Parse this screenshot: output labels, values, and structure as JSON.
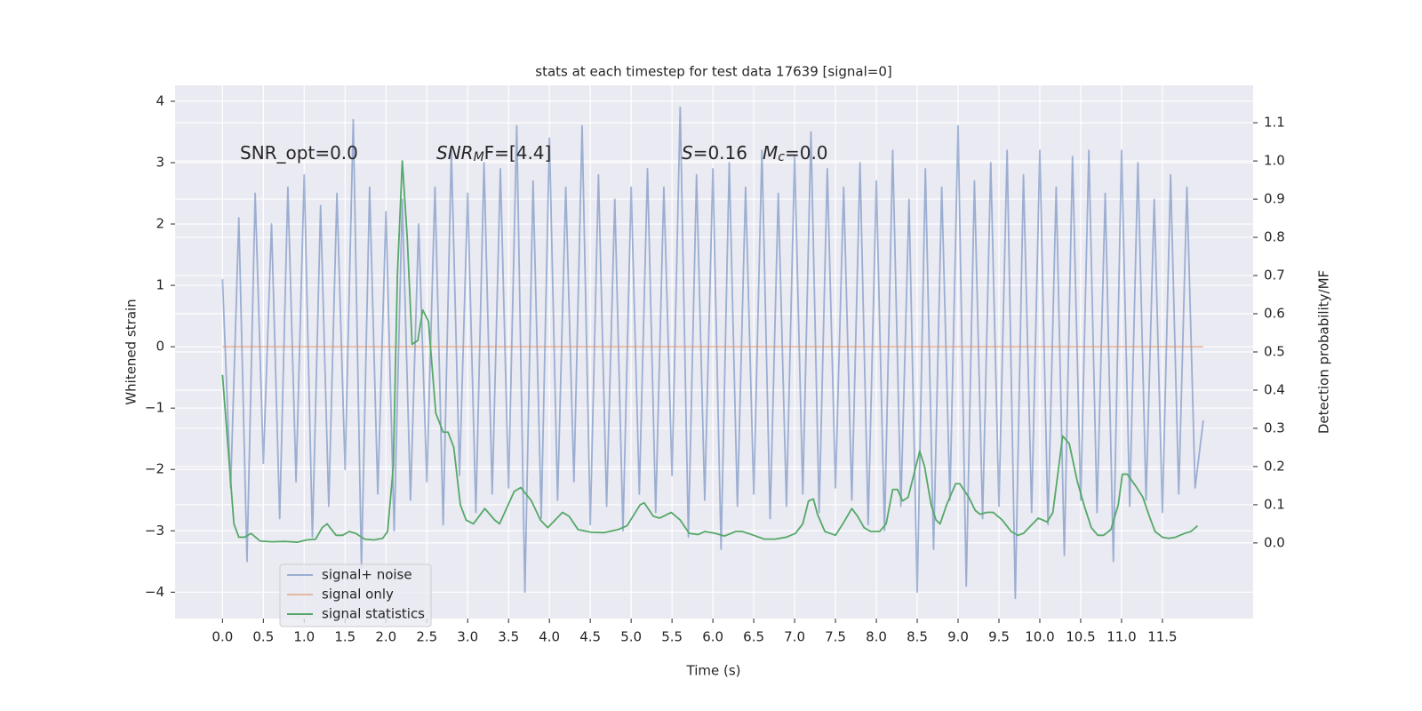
{
  "chart_data": {
    "type": "line",
    "title": "stats at each timestep for test data 17639 [signal=0]",
    "x_label": "Time (s)",
    "y_label": "Whitened strain",
    "y2_label": "Detection probability/MF",
    "background": "#eaeaf2",
    "grid": true,
    "legend": "lower left",
    "xlim": [
      -0.58,
      12.61
    ],
    "ylim": [
      -4.43,
      4.26
    ],
    "y2lim": [
      -0.198,
      1.198
    ],
    "xticks": [
      {
        "value": 0,
        "label": "0.0"
      },
      {
        "value": 0.5,
        "label": "0.5"
      },
      {
        "value": 1,
        "label": "1.0"
      },
      {
        "value": 1.5,
        "label": "1.5"
      },
      {
        "value": 2,
        "label": "2.0"
      },
      {
        "value": 2.5,
        "label": "2.5"
      },
      {
        "value": 3,
        "label": "3.0"
      },
      {
        "value": 3.5,
        "label": "3.5"
      },
      {
        "value": 4,
        "label": "4.0"
      },
      {
        "value": 4.5,
        "label": "4.5"
      },
      {
        "value": 5,
        "label": "5.0"
      },
      {
        "value": 5.5,
        "label": "5.5"
      },
      {
        "value": 6,
        "label": "6.0"
      },
      {
        "value": 6.5,
        "label": "6.5"
      },
      {
        "value": 7,
        "label": "7.0"
      },
      {
        "value": 7.5,
        "label": "7.5"
      },
      {
        "value": 8,
        "label": "8.0"
      },
      {
        "value": 8.5,
        "label": "8.5"
      },
      {
        "value": 9,
        "label": "9.0"
      },
      {
        "value": 9.5,
        "label": "9.5"
      },
      {
        "value": 10,
        "label": "10.0"
      },
      {
        "value": 10.5,
        "label": "10.5"
      },
      {
        "value": 11,
        "label": "11.0"
      },
      {
        "value": 11.5,
        "label": "11.5"
      }
    ],
    "yticks": [
      {
        "value": -4,
        "label": "−4"
      },
      {
        "value": -3,
        "label": "−3"
      },
      {
        "value": -2,
        "label": "−2"
      },
      {
        "value": -1,
        "label": "−1"
      },
      0,
      1,
      2,
      3,
      4
    ],
    "y2ticks": [
      {
        "value": 0,
        "label": "0.0"
      },
      {
        "value": 0.1,
        "label": "0.1"
      },
      {
        "value": 0.2,
        "label": "0.2"
      },
      {
        "value": 0.3,
        "label": "0.3"
      },
      {
        "value": 0.4,
        "label": "0.4"
      },
      {
        "value": 0.5,
        "label": "0.5"
      },
      {
        "value": 0.6,
        "label": "0.6"
      },
      {
        "value": 0.7,
        "label": "0.7"
      },
      {
        "value": 0.8,
        "label": "0.8"
      },
      {
        "value": 0.9,
        "label": "0.9"
      },
      {
        "value": 1,
        "label": "1.0"
      },
      {
        "value": 1.1,
        "label": "1.1"
      }
    ],
    "annotations": [
      {
        "runs": [
          {
            "text": "SNR_opt=0.0",
            "style": "normal"
          }
        ]
      },
      {
        "runs": [
          {
            "text": "SNR",
            "style": "italic"
          },
          {
            "text": "M",
            "style": "italic-sub"
          },
          {
            "text": "F=[4.4]",
            "style": "normal"
          }
        ]
      },
      {
        "runs": [
          {
            "text": "S",
            "style": "italic"
          },
          {
            "text": "=0.16",
            "style": "normal"
          }
        ]
      },
      {
        "runs": [
          {
            "text": "M",
            "style": "italic"
          },
          {
            "text": "c",
            "style": "italic-sub"
          },
          {
            "text": "=0.0",
            "style": "normal"
          }
        ]
      }
    ],
    "series": [
      {
        "name": "signal+ noise",
        "color": "#4c72b0",
        "alpha": 0.5,
        "axis": "y",
        "x": [
          0,
          0.1,
          0.2,
          0.3,
          0.4,
          0.5,
          0.6,
          0.7,
          0.8,
          0.9,
          1,
          1.1,
          1.2,
          1.3,
          1.4,
          1.5,
          1.6,
          1.7,
          1.8,
          1.9,
          2,
          2.1,
          2.2,
          2.3,
          2.4,
          2.5,
          2.6,
          2.7,
          2.8,
          2.9,
          3,
          3.1,
          3.2,
          3.3,
          3.4,
          3.5,
          3.6,
          3.7,
          3.8,
          3.9,
          4,
          4.1,
          4.2,
          4.3,
          4.4,
          4.5,
          4.6,
          4.7,
          4.8,
          4.9,
          5,
          5.1,
          5.2,
          5.3,
          5.4,
          5.5,
          5.6,
          5.7,
          5.8,
          5.9,
          6,
          6.1,
          6.2,
          6.3,
          6.4,
          6.5,
          6.6,
          6.7,
          6.8,
          6.9,
          7,
          7.1,
          7.2,
          7.3,
          7.4,
          7.5,
          7.6,
          7.7,
          7.8,
          7.9,
          8,
          8.1,
          8.2,
          8.3,
          8.4,
          8.5,
          8.6,
          8.7,
          8.8,
          8.9,
          9,
          9.1,
          9.2,
          9.3,
          9.4,
          9.5,
          9.6,
          9.7,
          9.8,
          9.9,
          10,
          10.1,
          10.2,
          10.3,
          10.4,
          10.5,
          10.6,
          10.7,
          10.8,
          10.9,
          11,
          11.1,
          11.2,
          11.3,
          11.4,
          11.5,
          11.6,
          11.7,
          11.8,
          11.9,
          12
        ],
        "values": [
          1.1,
          -2.3,
          2.1,
          -3.5,
          2.5,
          -1.9,
          2.0,
          -2.8,
          2.6,
          -2.2,
          2.8,
          -3.1,
          2.3,
          -2.6,
          2.5,
          -2.0,
          3.7,
          -3.6,
          2.6,
          -2.4,
          2.2,
          -3.0,
          2.4,
          -2.5,
          2.0,
          -2.2,
          2.6,
          -2.9,
          3.2,
          -2.1,
          2.5,
          -2.7,
          3.0,
          -2.4,
          2.9,
          -2.3,
          3.6,
          -4.0,
          2.7,
          -2.8,
          3.4,
          -2.5,
          2.6,
          -2.2,
          3.6,
          -2.9,
          2.8,
          -2.6,
          2.4,
          -3.0,
          2.6,
          -2.4,
          2.9,
          -2.7,
          2.6,
          -2.1,
          3.9,
          -3.1,
          2.8,
          -2.5,
          2.9,
          -3.3,
          3.0,
          -2.6,
          2.6,
          -2.4,
          3.2,
          -2.8,
          2.5,
          -2.6,
          3.1,
          -2.4,
          3.5,
          -2.7,
          2.9,
          -2.3,
          2.6,
          -2.5,
          3.0,
          -2.9,
          2.7,
          -3.0,
          3.2,
          -2.6,
          2.4,
          -4.0,
          2.9,
          -3.3,
          2.6,
          -2.5,
          3.6,
          -3.9,
          2.7,
          -2.8,
          3.0,
          -2.6,
          3.2,
          -4.1,
          2.8,
          -2.7,
          3.2,
          -2.9,
          2.6,
          -3.4,
          3.1,
          -2.5,
          3.2,
          -2.7,
          2.5,
          -3.5,
          3.2,
          -2.6,
          3.0,
          -2.5,
          2.4,
          -2.7,
          2.8,
          -2.4,
          2.6,
          -2.3,
          -1.2
        ]
      },
      {
        "name": "signal only",
        "color": "#dd8452",
        "alpha": 0.5,
        "axis": "y",
        "x": [
          0,
          12
        ],
        "values": [
          0,
          0
        ]
      },
      {
        "name": "signal statistics",
        "color": "#55a868",
        "alpha": 1,
        "axis": "y2",
        "x": [
          0,
          0.14,
          0.2,
          0.27,
          0.35,
          0.46,
          0.6,
          0.76,
          0.92,
          1.03,
          1.14,
          1.22,
          1.28,
          1.39,
          1.47,
          1.55,
          1.63,
          1.74,
          1.85,
          1.96,
          2.02,
          2.09,
          2.14,
          2.2,
          2.26,
          2.32,
          2.39,
          2.45,
          2.52,
          2.61,
          2.7,
          2.76,
          2.83,
          2.91,
          2.98,
          3.07,
          3.21,
          3.33,
          3.39,
          3.57,
          3.65,
          3.78,
          3.89,
          3.98,
          4.16,
          4.24,
          4.35,
          4.51,
          4.67,
          4.84,
          4.95,
          5.11,
          5.16,
          5.27,
          5.35,
          5.49,
          5.6,
          5.71,
          5.82,
          5.9,
          6.03,
          6.14,
          6.28,
          6.36,
          6.5,
          6.63,
          6.76,
          6.9,
          7.01,
          7.1,
          7.17,
          7.23,
          7.28,
          7.37,
          7.5,
          7.59,
          7.7,
          7.77,
          7.85,
          7.93,
          8.04,
          8.12,
          8.2,
          8.26,
          8.32,
          8.39,
          8.53,
          8.59,
          8.67,
          8.73,
          8.78,
          8.86,
          8.97,
          9.02,
          9.13,
          9.21,
          9.27,
          9.35,
          9.43,
          9.54,
          9.65,
          9.73,
          9.8,
          9.89,
          9.98,
          10.09,
          10.16,
          10.28,
          10.36,
          10.46,
          10.54,
          10.63,
          10.71,
          10.78,
          10.87,
          10.96,
          11.01,
          11.07,
          11.17,
          11.26,
          11.34,
          11.41,
          11.5,
          11.58,
          11.66,
          11.77,
          11.85,
          11.93
        ],
        "values": [
          0.44,
          0.05,
          0.015,
          0.015,
          0.025,
          0.005,
          0.003,
          0.004,
          0.002,
          0.008,
          0.01,
          0.04,
          0.05,
          0.02,
          0.02,
          0.03,
          0.025,
          0.01,
          0.008,
          0.012,
          0.03,
          0.2,
          0.7,
          1.0,
          0.8,
          0.52,
          0.53,
          0.61,
          0.58,
          0.34,
          0.29,
          0.29,
          0.25,
          0.1,
          0.06,
          0.05,
          0.09,
          0.06,
          0.05,
          0.135,
          0.145,
          0.11,
          0.06,
          0.04,
          0.08,
          0.07,
          0.035,
          0.028,
          0.027,
          0.035,
          0.045,
          0.1,
          0.105,
          0.07,
          0.065,
          0.08,
          0.06,
          0.025,
          0.022,
          0.03,
          0.025,
          0.018,
          0.03,
          0.03,
          0.02,
          0.01,
          0.01,
          0.015,
          0.025,
          0.05,
          0.11,
          0.115,
          0.075,
          0.03,
          0.02,
          0.05,
          0.09,
          0.07,
          0.04,
          0.03,
          0.03,
          0.05,
          0.14,
          0.14,
          0.11,
          0.12,
          0.24,
          0.2,
          0.1,
          0.06,
          0.05,
          0.1,
          0.155,
          0.155,
          0.12,
          0.085,
          0.075,
          0.08,
          0.08,
          0.06,
          0.03,
          0.02,
          0.025,
          0.045,
          0.065,
          0.055,
          0.08,
          0.28,
          0.26,
          0.16,
          0.1,
          0.04,
          0.02,
          0.02,
          0.035,
          0.1,
          0.18,
          0.18,
          0.15,
          0.12,
          0.07,
          0.03,
          0.015,
          0.012,
          0.015,
          0.025,
          0.03,
          0.045
        ]
      }
    ]
  }
}
